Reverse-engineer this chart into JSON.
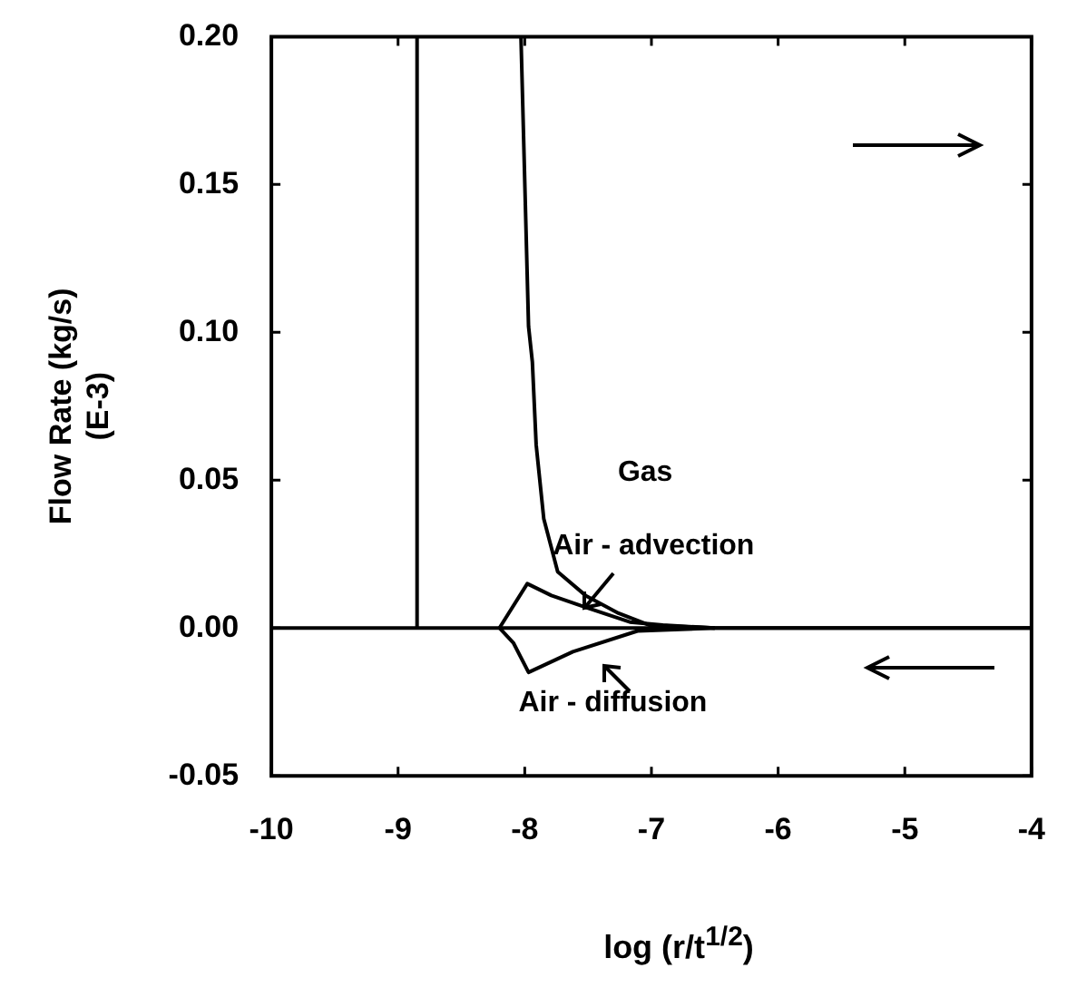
{
  "chart_data": {
    "type": "line",
    "xlabel": "log (r/t$^{1/2}$)",
    "ylabel": "Flow Rate (kg/s)\n(E-3)",
    "xlim": [
      -10,
      -4
    ],
    "xticks": [
      -10,
      -9,
      -8,
      -7,
      -6,
      -5,
      -4
    ],
    "ylim": [
      -0.05,
      0.2
    ],
    "yticks": [
      {
        "value": -0.05,
        "label": "-0.05"
      },
      {
        "value": 0,
        "label": "0.00"
      },
      {
        "value": 0.05,
        "label": "0.05"
      },
      {
        "value": 0.1,
        "label": "0.10"
      },
      {
        "value": 0.15,
        "label": "0.15"
      },
      {
        "value": 0.2,
        "label": "0.20"
      }
    ],
    "series": [
      {
        "color": "#000000",
        "x": [
          -8.85,
          -8.85
        ],
        "values": [
          0,
          0.2
        ]
      },
      {
        "name": "Gas",
        "color": "#000000",
        "x": [
          -8.03,
          -7.97,
          -7.94,
          -7.91,
          -7.85,
          -7.74,
          -7.52,
          -7.26,
          -7.02,
          -6.5,
          -4
        ],
        "values": [
          0.2,
          0.102,
          0.09,
          0.062,
          0.037,
          0.019,
          0.011,
          0.005,
          0.001,
          0,
          0
        ]
      },
      {
        "name": "Air - advection",
        "color": "#000000",
        "x": [
          -8.2,
          -7.98,
          -7.79,
          -7.52,
          -7.17,
          -6.91,
          -6.5
        ],
        "values": [
          0,
          0.015,
          0.011,
          0.007,
          0.002,
          0.001,
          0
        ]
      },
      {
        "name": "Air - diffusion",
        "color": "#000000",
        "x": [
          -8.2,
          -8.09,
          -7.97,
          -7.62,
          -7.11,
          -6.5
        ],
        "values": [
          0,
          -0.005,
          -0.015,
          -0.008,
          -0.001,
          0
        ]
      }
    ],
    "ref_lines": [
      {
        "axis": "y",
        "value": 0,
        "color": "#000000"
      }
    ]
  }
}
